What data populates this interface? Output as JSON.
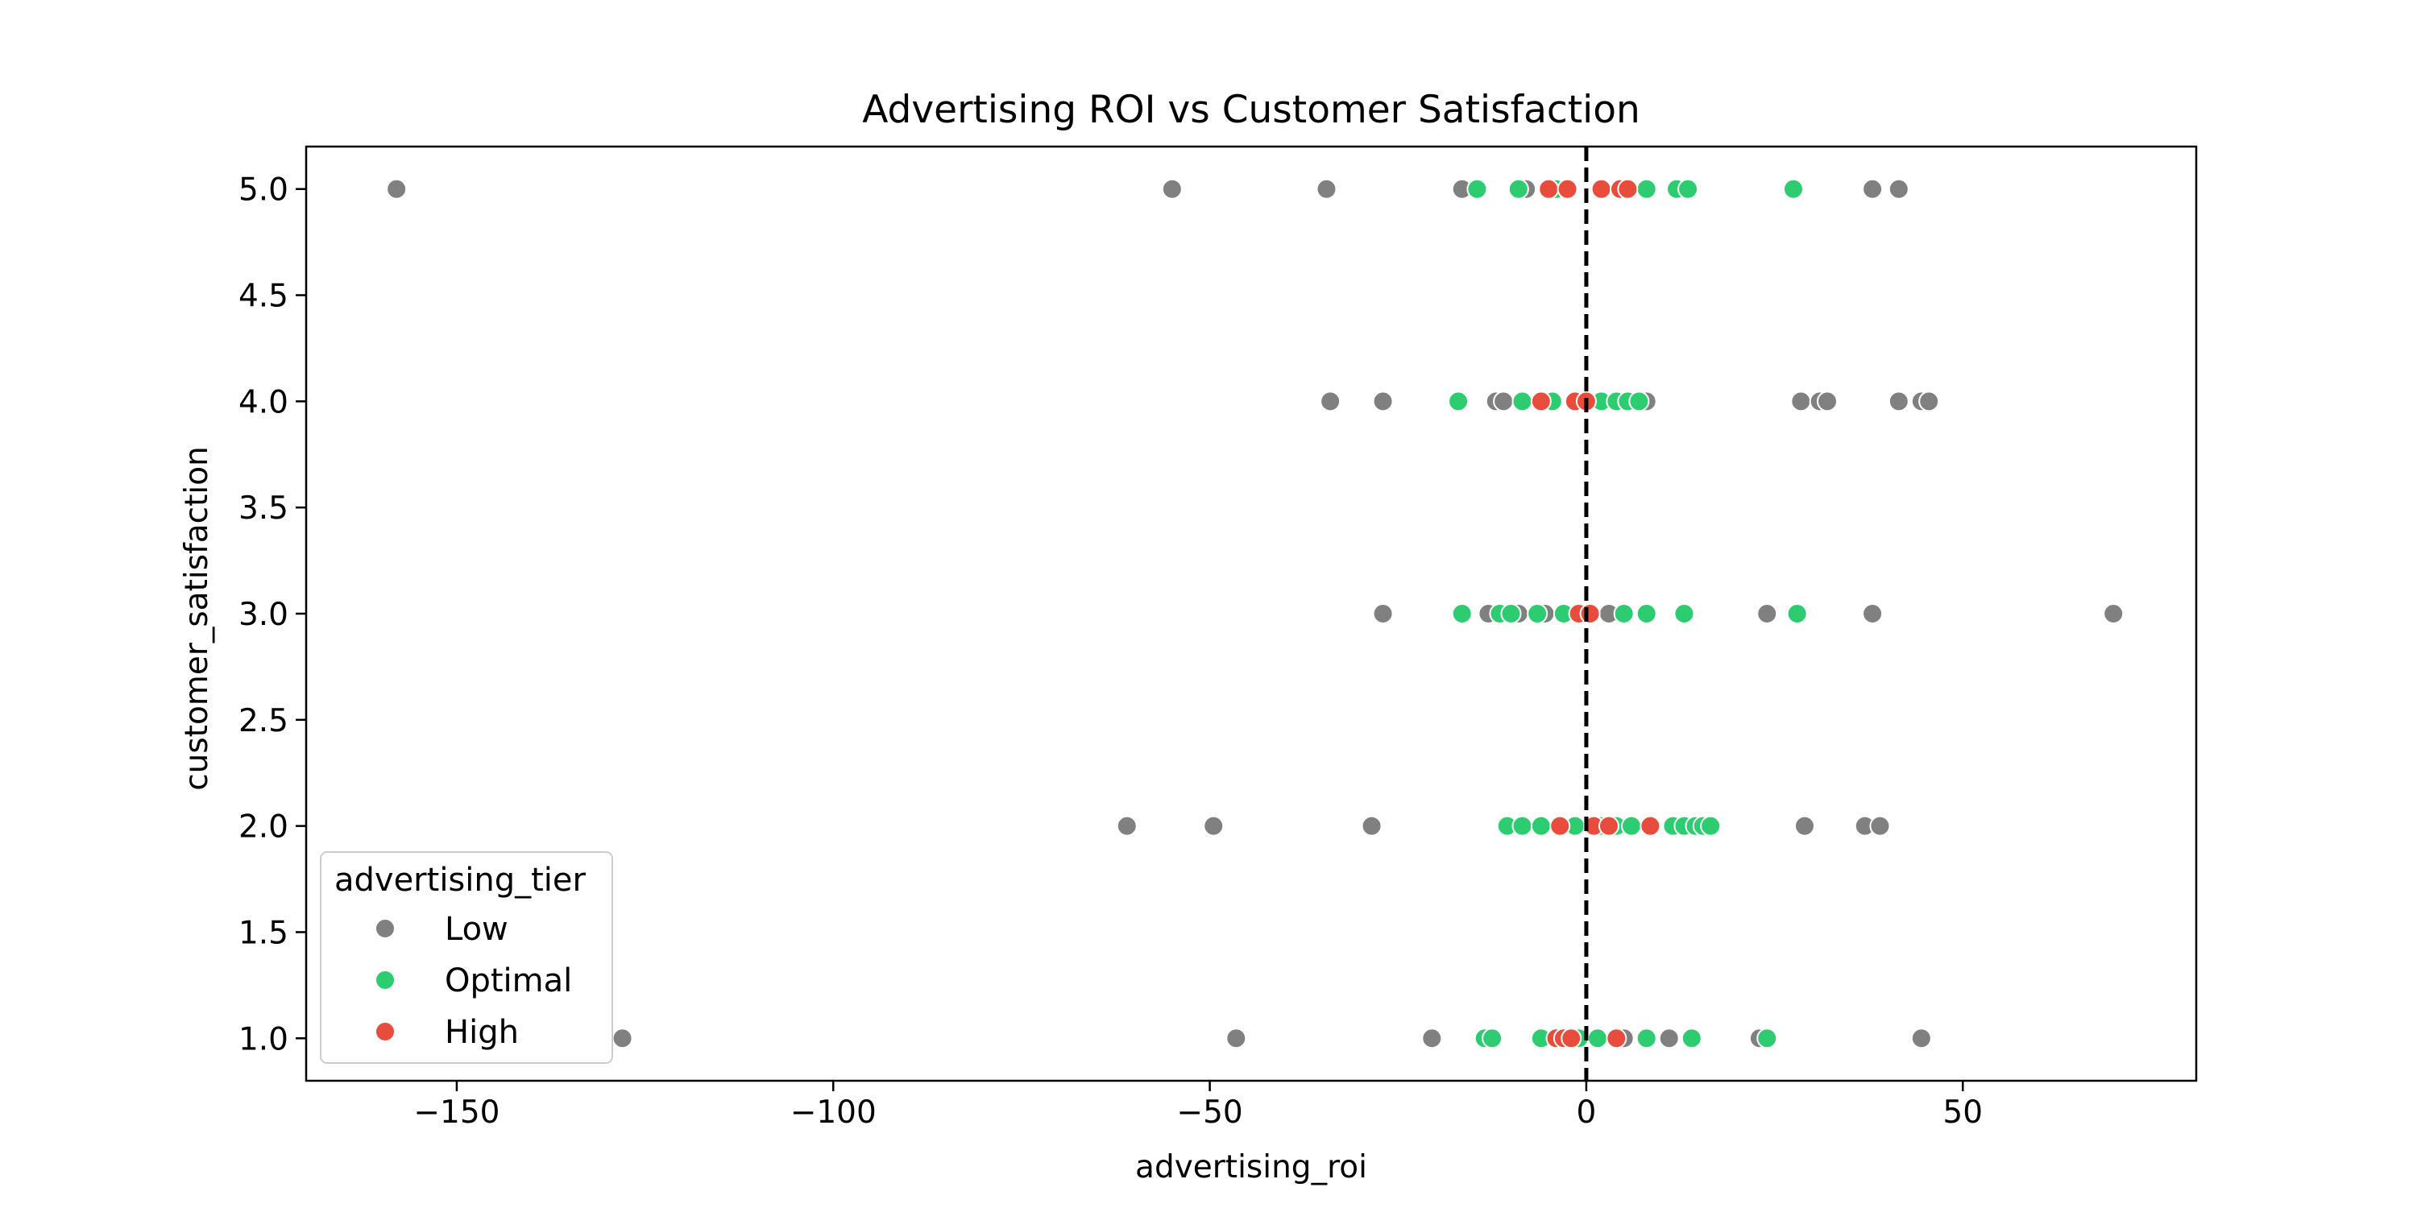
{
  "chart_data": {
    "type": "scatter",
    "title": "Advertising ROI vs Customer Satisfaction",
    "xlabel": "advertising_roi",
    "ylabel": "customer_satisfaction",
    "xlim": [
      -170,
      81
    ],
    "ylim": [
      0.8,
      5.2
    ],
    "xticks": [
      -150,
      -100,
      -50,
      0,
      50
    ],
    "xtick_labels": [
      "−150",
      "−100",
      "−50",
      "0",
      "50"
    ],
    "yticks": [
      1.0,
      1.5,
      2.0,
      2.5,
      3.0,
      3.5,
      4.0,
      4.5,
      5.0
    ],
    "ytick_labels": [
      "1.0",
      "1.5",
      "2.0",
      "2.5",
      "3.0",
      "3.5",
      "4.0",
      "4.5",
      "5.0"
    ],
    "grid": false,
    "reference_line": {
      "x": 0,
      "style": "dashed",
      "color": "#000000"
    },
    "legend": {
      "title": "advertising_tier",
      "placement": "lower-left"
    },
    "series": [
      {
        "name": "Low",
        "color": "#808080",
        "points": [
          [
            -158,
            5.0
          ],
          [
            -55,
            5.0
          ],
          [
            -34.5,
            5.0
          ],
          [
            -16.5,
            5.0
          ],
          [
            -8,
            5.0
          ],
          [
            38,
            5.0
          ],
          [
            41.5,
            5.0
          ],
          [
            -34,
            4.0
          ],
          [
            -27,
            4.0
          ],
          [
            -12,
            4.0
          ],
          [
            -11,
            4.0
          ],
          [
            8,
            4.0
          ],
          [
            28.5,
            4.0
          ],
          [
            31,
            4.0
          ],
          [
            32,
            4.0
          ],
          [
            41.5,
            4.0
          ],
          [
            44.5,
            4.0
          ],
          [
            45.5,
            4.0
          ],
          [
            -27,
            3.0
          ],
          [
            -13,
            3.0
          ],
          [
            -9,
            3.0
          ],
          [
            -5.5,
            3.0
          ],
          [
            3,
            3.0
          ],
          [
            24,
            3.0
          ],
          [
            38,
            3.0
          ],
          [
            70,
            3.0
          ],
          [
            -61,
            2.0
          ],
          [
            -49.5,
            2.0
          ],
          [
            -28.5,
            2.0
          ],
          [
            29,
            2.0
          ],
          [
            37,
            2.0
          ],
          [
            39,
            2.0
          ],
          [
            -128,
            1.0
          ],
          [
            -46.5,
            1.0
          ],
          [
            -20.5,
            1.0
          ],
          [
            5,
            1.0
          ],
          [
            11,
            1.0
          ],
          [
            23,
            1.0
          ],
          [
            44.5,
            1.0
          ]
        ]
      },
      {
        "name": "Optimal",
        "color": "#2ecc71",
        "points": [
          [
            -14.5,
            5.0
          ],
          [
            -9,
            5.0
          ],
          [
            -4,
            5.0
          ],
          [
            2,
            5.0
          ],
          [
            8,
            5.0
          ],
          [
            12,
            5.0
          ],
          [
            13.5,
            5.0
          ],
          [
            27.5,
            5.0
          ],
          [
            -17,
            4.0
          ],
          [
            -8.5,
            4.0
          ],
          [
            -4.5,
            4.0
          ],
          [
            -1,
            4.0
          ],
          [
            2,
            4.0
          ],
          [
            4,
            4.0
          ],
          [
            5.5,
            4.0
          ],
          [
            7,
            4.0
          ],
          [
            -16.5,
            3.0
          ],
          [
            -11.5,
            3.0
          ],
          [
            -10,
            3.0
          ],
          [
            -6.5,
            3.0
          ],
          [
            -3,
            3.0
          ],
          [
            5,
            3.0
          ],
          [
            8,
            3.0
          ],
          [
            13,
            3.0
          ],
          [
            28,
            3.0
          ],
          [
            -10.5,
            2.0
          ],
          [
            -8.5,
            2.0
          ],
          [
            -6,
            2.0
          ],
          [
            -1.5,
            2.0
          ],
          [
            2,
            2.0
          ],
          [
            4,
            2.0
          ],
          [
            6,
            2.0
          ],
          [
            11.5,
            2.0
          ],
          [
            13,
            2.0
          ],
          [
            14.5,
            2.0
          ],
          [
            15.5,
            2.0
          ],
          [
            16.5,
            2.0
          ],
          [
            -13.5,
            1.0
          ],
          [
            -12.5,
            1.0
          ],
          [
            -6,
            1.0
          ],
          [
            -1,
            1.0
          ],
          [
            1.5,
            1.0
          ],
          [
            8,
            1.0
          ],
          [
            14,
            1.0
          ],
          [
            24,
            1.0
          ]
        ]
      },
      {
        "name": "High",
        "color": "#e74c3c",
        "points": [
          [
            -5,
            5.0
          ],
          [
            -2.5,
            5.0
          ],
          [
            2,
            5.0
          ],
          [
            4.5,
            5.0
          ],
          [
            5.5,
            5.0
          ],
          [
            -6,
            4.0
          ],
          [
            -1.5,
            4.0
          ],
          [
            0,
            4.0
          ],
          [
            -1,
            3.0
          ],
          [
            0.5,
            3.0
          ],
          [
            -3.5,
            2.0
          ],
          [
            1,
            2.0
          ],
          [
            3,
            2.0
          ],
          [
            8.5,
            2.0
          ],
          [
            -4,
            1.0
          ],
          [
            -3,
            1.0
          ],
          [
            -2,
            1.0
          ],
          [
            4,
            1.0
          ]
        ]
      }
    ]
  }
}
